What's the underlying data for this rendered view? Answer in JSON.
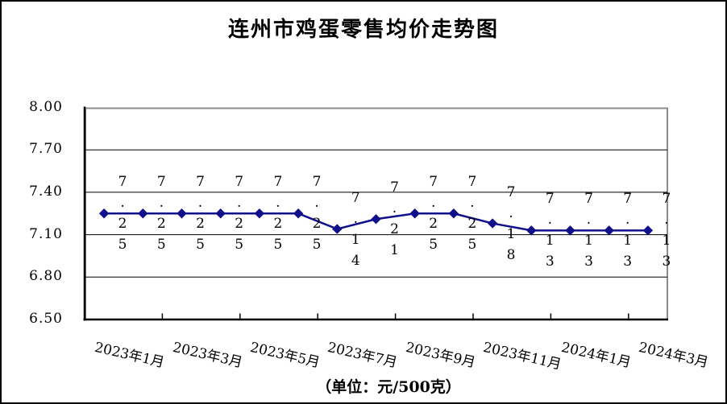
{
  "chart_data": {
    "type": "line",
    "title": "连州市鸡蛋零售均价走势图",
    "unit_caption": "（单位：元/500克）",
    "x_tick_labels": [
      "2023年1月",
      "2023年3月",
      "2023年5月",
      "2023年7月",
      "2023年9月",
      "2023年11月",
      "2024年1月",
      "2024年3月"
    ],
    "x_label_every": 2,
    "n_points": 15,
    "values": [
      7.25,
      7.25,
      7.25,
      7.25,
      7.25,
      7.25,
      7.14,
      7.21,
      7.25,
      7.25,
      7.18,
      7.13,
      7.13,
      7.13,
      7.13
    ],
    "data_labels": [
      "7.25",
      "7.25",
      "7.25",
      "7.25",
      "7.25",
      "7.25",
      "7.14",
      "7.21",
      "7.25",
      "7.25",
      "7.18",
      "7.13",
      "7.13",
      "7.13",
      "7.13"
    ],
    "y_tick_labels": [
      "8.00",
      "7.70",
      "7.40",
      "7.10",
      "6.80",
      "6.50"
    ],
    "y_tick_values": [
      8.0,
      7.7,
      7.4,
      7.1,
      6.8,
      6.5
    ],
    "ylim": [
      6.5,
      8.0
    ],
    "grid": true,
    "legend": false,
    "data_label_position": "right-vertical",
    "series_color": "#10108C",
    "gridline_color": "#000000",
    "axis_color": "#000000",
    "plot_border_color": "#8C8C8C",
    "background_color": "#FFFFFF"
  }
}
